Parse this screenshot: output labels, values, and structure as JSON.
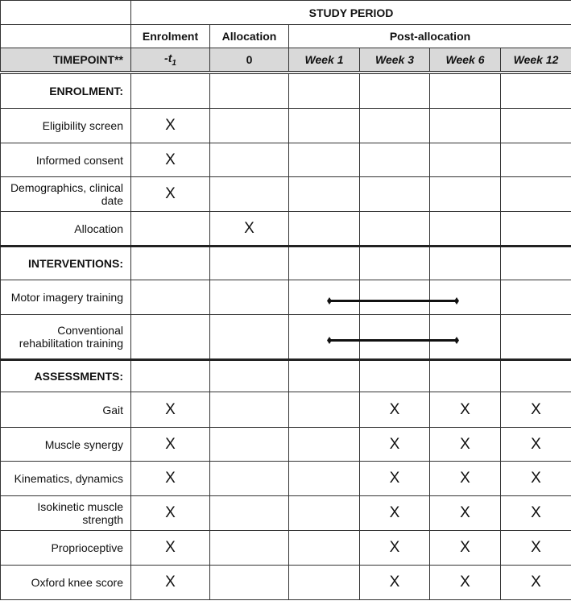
{
  "header": {
    "study_period": "STUDY PERIOD",
    "phases": [
      "Enrolment",
      "Allocation",
      "Post-allocation"
    ],
    "timepoint_label": "TIMEPOINT**",
    "timepoints": [
      "-t",
      "0",
      "Week 1",
      "Week 3",
      "Week 6",
      "Week 12"
    ],
    "t_subscript": "1"
  },
  "mark": "X",
  "sections": [
    {
      "title": "ENROLMENT:",
      "rows": [
        {
          "label": "Eligibility screen",
          "marks": [
            1,
            0,
            0,
            0,
            0,
            0
          ]
        },
        {
          "label": "Informed consent",
          "marks": [
            1,
            0,
            0,
            0,
            0,
            0
          ]
        },
        {
          "label": "Demographics, clinical date",
          "marks": [
            1,
            0,
            0,
            0,
            0,
            0
          ]
        },
        {
          "label": "Allocation",
          "marks": [
            0,
            1,
            0,
            0,
            0,
            0
          ]
        }
      ]
    },
    {
      "title": "INTERVENTIONS:",
      "rows": [
        {
          "label": "Motor imagery training",
          "marks": [
            0,
            0,
            0,
            0,
            0,
            0
          ],
          "span": [
            "Week 1",
            "Week 6"
          ]
        },
        {
          "label": "Conventional rehabilitation training",
          "marks": [
            0,
            0,
            0,
            0,
            0,
            0
          ],
          "span": [
            "Week 1",
            "Week 6"
          ]
        }
      ]
    },
    {
      "title": "ASSESSMENTS:",
      "rows": [
        {
          "label": "Gait",
          "marks": [
            1,
            0,
            0,
            1,
            1,
            1
          ]
        },
        {
          "label": "Muscle synergy",
          "marks": [
            1,
            0,
            0,
            1,
            1,
            1
          ]
        },
        {
          "label": "Kinematics, dynamics",
          "marks": [
            1,
            0,
            0,
            1,
            1,
            1
          ]
        },
        {
          "label": "Isokinetic muscle strength",
          "marks": [
            1,
            0,
            0,
            1,
            1,
            1
          ]
        },
        {
          "label": "Proprioceptive",
          "marks": [
            1,
            0,
            0,
            1,
            1,
            1
          ]
        },
        {
          "label": "Oxford knee score",
          "marks": [
            1,
            0,
            0,
            1,
            1,
            1
          ]
        }
      ]
    }
  ]
}
